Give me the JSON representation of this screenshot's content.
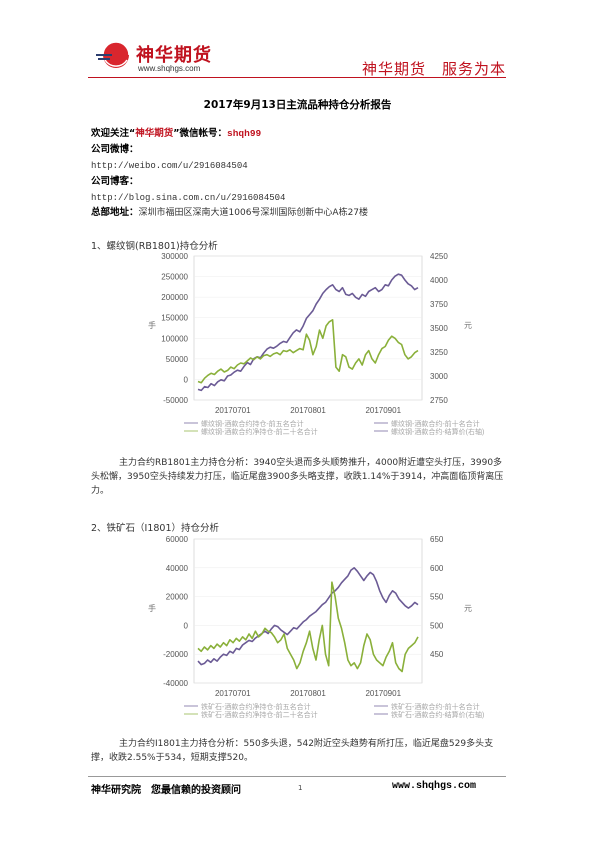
{
  "header": {
    "logo_cn": "神华期货",
    "logo_url": "www.shqhgs.com",
    "slogan": "神华期货　服务为本"
  },
  "title": "2017年9月13日主流品种持仓分析报告",
  "contact": {
    "follow_prefix": "欢迎关注“",
    "follow_brand": "神华期货",
    "follow_mid": "”微信帐号：",
    "wechat_id": "shqh99",
    "weibo_label": "公司微博：",
    "weibo_url": "http://weibo.com/u/2916084504",
    "blog_label": "公司博客：",
    "blog_url": "http://blog.sina.com.cn/u/2916084504",
    "address_label": "总部地址：",
    "address": "深圳市福田区深南大道1006号深圳国际创新中心A栋27楼"
  },
  "sections": [
    {
      "heading": "1、螺纹钢(RB1801)持仓分析",
      "paragraph": "主力合约RB1801主力持仓分析：3940空头退而多头顺势推升，4000附近遭空头打压，3990多头松懈，3950空头持续发力打压，临近尾盘3900多头略支撑，收跌1.14%于3914，冲高面临顶背离压力。"
    },
    {
      "heading": "2、铁矿石（I1801）持仓分析",
      "paragraph": "主力合约I1801主力持仓分析：550多头退，542附近空头趋势有所打压，临近尾盘529多头支撑，收跌2.55%于534，短期支撑520。"
    }
  ],
  "colors": {
    "purple": "#6b5b95",
    "green": "#8ab03a",
    "brand_red": "#c0121f"
  },
  "chart_data": [
    {
      "type": "line",
      "x_ticks": [
        "20170701",
        "20170801",
        "20170901"
      ],
      "ylim_left": [
        -50000,
        300000
      ],
      "yticks_left": [
        "300000",
        "250000",
        "200000",
        "150000",
        "100000",
        "50000",
        "0",
        "-50000"
      ],
      "ylim_right": [
        2750,
        4250
      ],
      "yticks_right": [
        "4250",
        "4000",
        "3750",
        "3500",
        "3250",
        "3000",
        "2750"
      ],
      "ylabel_left": "手",
      "ylabel_right": "元",
      "legend": [
        "螺纹钢-酒款合约持仓-前五名合计",
        "螺纹钢-酒款合约-前十名合计",
        "螺纹钢-酒款合约净持仓-前二十名合计",
        "螺纹钢-酒款合约-结算价(右轴)"
      ],
      "series": [
        {
          "name": "螺纹钢-酒款合约-结算价(右轴)",
          "axis": "right",
          "color": "#6b5b95",
          "values": [
            2860,
            2850,
            2890,
            2880,
            2920,
            2900,
            2940,
            2960,
            2950,
            3000,
            3010,
            3040,
            3060,
            3050,
            3100,
            3140,
            3120,
            3180,
            3200,
            3190,
            3240,
            3280,
            3300,
            3290,
            3310,
            3340,
            3360,
            3350,
            3400,
            3450,
            3480,
            3460,
            3520,
            3600,
            3640,
            3680,
            3750,
            3800,
            3860,
            3900,
            3930,
            3950,
            3900,
            3880,
            3920,
            3850,
            3840,
            3860,
            3820,
            3800,
            3850,
            3830,
            3880,
            3900,
            3920,
            3880,
            3900,
            3950,
            3940,
            4000,
            4040,
            4060,
            4050,
            4000,
            3960,
            3940,
            3900,
            3920
          ]
        },
        {
          "name": "螺纹钢-酒款合约净持仓-前二十名合计",
          "axis": "left",
          "color": "#8ab03a",
          "values": [
            -5000,
            -8000,
            3000,
            10000,
            15000,
            12000,
            20000,
            25000,
            18000,
            22000,
            30000,
            26000,
            35000,
            40000,
            38000,
            45000,
            52000,
            48000,
            55000,
            50000,
            58000,
            60000,
            56000,
            62000,
            65000,
            60000,
            70000,
            68000,
            72000,
            65000,
            70000,
            75000,
            72000,
            110000,
            95000,
            60000,
            80000,
            120000,
            100000,
            130000,
            140000,
            145000,
            30000,
            20000,
            60000,
            55000,
            30000,
            25000,
            40000,
            50000,
            35000,
            60000,
            70000,
            50000,
            40000,
            60000,
            75000,
            80000,
            95000,
            105000,
            100000,
            90000,
            85000,
            60000,
            50000,
            55000,
            65000,
            70000
          ]
        }
      ]
    },
    {
      "type": "line",
      "x_ticks": [
        "20170701",
        "20170801",
        "20170901"
      ],
      "ylim_left": [
        -40000,
        60000
      ],
      "yticks_left": [
        "60000",
        "40000",
        "20000",
        "0",
        "-20000",
        "-40000"
      ],
      "ylim_right": [
        400,
        650
      ],
      "yticks_right": [
        "650",
        "600",
        "550",
        "500",
        "450"
      ],
      "ylabel_left": "手",
      "ylabel_right": "元",
      "legend": [
        "铁矿石-酒款合约净持仓-前五名合计",
        "铁矿石-酒款合约-前十名合计",
        "铁矿石-酒款合约净持仓-前二十名合计",
        "铁矿石-酒款合约-结算价(右轴)"
      ],
      "series": [
        {
          "name": "铁矿石-酒款合约-结算价(右轴)",
          "axis": "right",
          "color": "#6b5b95",
          "values": [
            438,
            432,
            434,
            440,
            436,
            442,
            438,
            445,
            450,
            448,
            455,
            452,
            460,
            458,
            466,
            470,
            474,
            472,
            478,
            482,
            486,
            490,
            486,
            494,
            500,
            498,
            492,
            488,
            484,
            490,
            496,
            494,
            500,
            506,
            510,
            516,
            520,
            524,
            530,
            536,
            540,
            548,
            556,
            560,
            566,
            574,
            580,
            586,
            596,
            600,
            594,
            586,
            578,
            586,
            592,
            588,
            576,
            560,
            548,
            540,
            552,
            560,
            556,
            546,
            540,
            534,
            530,
            534,
            540,
            536
          ]
        },
        {
          "name": "铁矿石-酒款合约净持仓-前二十名合计",
          "axis": "left",
          "color": "#8ab03a",
          "values": [
            -16000,
            -18000,
            -15000,
            -17000,
            -14000,
            -16000,
            -13000,
            -15000,
            -12000,
            -14000,
            -10000,
            -12000,
            -9000,
            -11000,
            -8000,
            -10000,
            -6000,
            -9000,
            -4000,
            -8000,
            -6000,
            -2000,
            -4000,
            -5000,
            -8000,
            -12000,
            -10000,
            -6000,
            -16000,
            -20000,
            -24000,
            -30000,
            -26000,
            -18000,
            -12000,
            -4000,
            -16000,
            -24000,
            -10000,
            0,
            -20000,
            -28000,
            30000,
            20000,
            5000,
            -2000,
            -12000,
            -24000,
            -28000,
            -26000,
            -30000,
            -26000,
            -14000,
            -6000,
            -10000,
            -20000,
            -24000,
            -26000,
            -28000,
            -22000,
            -18000,
            -12000,
            -26000,
            -30000,
            -32000,
            -20000,
            -16000,
            -14000,
            -12000,
            -8000
          ]
        }
      ]
    }
  ],
  "footer": {
    "left": "神华研究院　您最信赖的投资顾问",
    "page": "1",
    "right": "www.shqhgs.com"
  }
}
